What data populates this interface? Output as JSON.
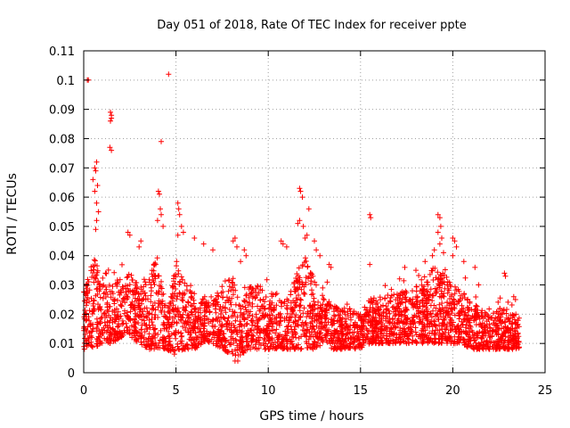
{
  "chart_data": {
    "type": "scatter",
    "title": "Day 051 of 2018, Rate Of TEC Index for receiver ppte",
    "xlabel": "GPS time / hours",
    "ylabel": "ROTI / TECUs",
    "xlim": [
      0,
      25
    ],
    "ylim": [
      0,
      0.11
    ],
    "x_ticks": [
      "0",
      "5",
      "10",
      "15",
      "20",
      "25"
    ],
    "y_ticks": [
      "0",
      "0.01",
      "0.02",
      "0.03",
      "0.04",
      "0.05",
      "0.06",
      "0.07",
      "0.08",
      "0.09",
      "0.1",
      "0.11"
    ],
    "grid": true,
    "marker": "plus",
    "color": "#ff0000",
    "points_sampled_from_profile": true,
    "profile": [
      [
        0.0,
        0.008,
        0.028
      ],
      [
        0.5,
        0.008,
        0.04
      ],
      [
        1.0,
        0.01,
        0.036
      ],
      [
        1.5,
        0.01,
        0.032
      ],
      [
        2.0,
        0.012,
        0.032
      ],
      [
        2.5,
        0.012,
        0.034
      ],
      [
        3.0,
        0.01,
        0.03
      ],
      [
        3.5,
        0.008,
        0.034
      ],
      [
        4.0,
        0.008,
        0.04
      ],
      [
        4.5,
        0.008,
        0.02
      ],
      [
        5.0,
        0.006,
        0.04
      ],
      [
        5.5,
        0.008,
        0.03
      ],
      [
        6.0,
        0.008,
        0.028
      ],
      [
        6.5,
        0.01,
        0.026
      ],
      [
        7.0,
        0.01,
        0.026
      ],
      [
        7.5,
        0.008,
        0.03
      ],
      [
        8.0,
        0.006,
        0.034
      ],
      [
        8.5,
        0.006,
        0.024
      ],
      [
        9.0,
        0.008,
        0.03
      ],
      [
        9.5,
        0.008,
        0.03
      ],
      [
        10.0,
        0.008,
        0.026
      ],
      [
        10.5,
        0.008,
        0.028
      ],
      [
        11.0,
        0.008,
        0.024
      ],
      [
        11.5,
        0.008,
        0.034
      ],
      [
        12.0,
        0.008,
        0.04
      ],
      [
        12.5,
        0.008,
        0.032
      ],
      [
        13.0,
        0.01,
        0.026
      ],
      [
        13.5,
        0.008,
        0.024
      ],
      [
        14.0,
        0.008,
        0.022
      ],
      [
        14.5,
        0.008,
        0.022
      ],
      [
        15.0,
        0.008,
        0.02
      ],
      [
        15.5,
        0.01,
        0.026
      ],
      [
        16.0,
        0.01,
        0.026
      ],
      [
        16.5,
        0.01,
        0.026
      ],
      [
        17.0,
        0.01,
        0.028
      ],
      [
        17.5,
        0.01,
        0.028
      ],
      [
        18.0,
        0.01,
        0.03
      ],
      [
        18.5,
        0.01,
        0.034
      ],
      [
        19.0,
        0.01,
        0.036
      ],
      [
        19.5,
        0.01,
        0.034
      ],
      [
        20.0,
        0.01,
        0.03
      ],
      [
        20.5,
        0.01,
        0.028
      ],
      [
        21.0,
        0.008,
        0.024
      ],
      [
        21.5,
        0.008,
        0.022
      ],
      [
        22.0,
        0.008,
        0.02
      ],
      [
        22.5,
        0.008,
        0.022
      ],
      [
        23.0,
        0.008,
        0.022
      ],
      [
        23.6,
        0.008,
        0.02
      ]
    ],
    "outliers": [
      [
        0.2,
        0.1
      ],
      [
        0.25,
        0.1
      ],
      [
        0.5,
        0.066
      ],
      [
        0.6,
        0.07
      ],
      [
        0.65,
        0.069
      ],
      [
        0.7,
        0.072
      ],
      [
        0.6,
        0.062
      ],
      [
        0.7,
        0.058
      ],
      [
        0.75,
        0.064
      ],
      [
        0.8,
        0.055
      ],
      [
        0.65,
        0.049
      ],
      [
        0.7,
        0.052
      ],
      [
        1.45,
        0.089
      ],
      [
        1.5,
        0.088
      ],
      [
        1.45,
        0.086
      ],
      [
        1.5,
        0.087
      ],
      [
        1.42,
        0.077
      ],
      [
        1.5,
        0.076
      ],
      [
        2.4,
        0.048
      ],
      [
        2.5,
        0.047
      ],
      [
        3.0,
        0.043
      ],
      [
        3.1,
        0.045
      ],
      [
        4.6,
        0.102
      ],
      [
        4.2,
        0.079
      ],
      [
        4.05,
        0.062
      ],
      [
        4.1,
        0.061
      ],
      [
        4.0,
        0.052
      ],
      [
        4.2,
        0.054
      ],
      [
        4.3,
        0.05
      ],
      [
        4.15,
        0.056
      ],
      [
        5.1,
        0.058
      ],
      [
        5.15,
        0.056
      ],
      [
        5.2,
        0.054
      ],
      [
        5.3,
        0.05
      ],
      [
        5.1,
        0.047
      ],
      [
        5.4,
        0.048
      ],
      [
        6.0,
        0.046
      ],
      [
        6.5,
        0.044
      ],
      [
        7.0,
        0.042
      ],
      [
        8.1,
        0.045
      ],
      [
        8.2,
        0.046
      ],
      [
        8.3,
        0.043
      ],
      [
        8.5,
        0.038
      ],
      [
        8.2,
        0.004
      ],
      [
        8.35,
        0.004
      ],
      [
        8.7,
        0.042
      ],
      [
        8.8,
        0.04
      ],
      [
        10.7,
        0.045
      ],
      [
        10.8,
        0.044
      ],
      [
        11.0,
        0.043
      ],
      [
        11.7,
        0.063
      ],
      [
        11.75,
        0.062
      ],
      [
        11.85,
        0.06
      ],
      [
        11.6,
        0.051
      ],
      [
        11.7,
        0.052
      ],
      [
        11.9,
        0.05
      ],
      [
        12.2,
        0.056
      ],
      [
        12.0,
        0.046
      ],
      [
        12.1,
        0.047
      ],
      [
        12.5,
        0.045
      ],
      [
        12.6,
        0.042
      ],
      [
        12.8,
        0.04
      ],
      [
        13.3,
        0.037
      ],
      [
        13.4,
        0.036
      ],
      [
        15.5,
        0.054
      ],
      [
        15.55,
        0.053
      ],
      [
        15.5,
        0.037
      ],
      [
        17.4,
        0.036
      ],
      [
        18.0,
        0.035
      ],
      [
        18.5,
        0.038
      ],
      [
        18.9,
        0.04
      ],
      [
        19.0,
        0.042
      ],
      [
        19.2,
        0.054
      ],
      [
        19.3,
        0.053
      ],
      [
        19.35,
        0.05
      ],
      [
        19.2,
        0.048
      ],
      [
        19.4,
        0.046
      ],
      [
        19.3,
        0.044
      ],
      [
        19.5,
        0.041
      ],
      [
        20.0,
        0.046
      ],
      [
        20.1,
        0.045
      ],
      [
        20.2,
        0.043
      ],
      [
        20.0,
        0.04
      ],
      [
        20.6,
        0.038
      ],
      [
        21.2,
        0.036
      ],
      [
        21.4,
        0.03
      ],
      [
        22.8,
        0.034
      ],
      [
        22.85,
        0.033
      ],
      [
        23.3,
        0.026
      ],
      [
        23.4,
        0.025
      ]
    ],
    "point_count": 3200
  }
}
